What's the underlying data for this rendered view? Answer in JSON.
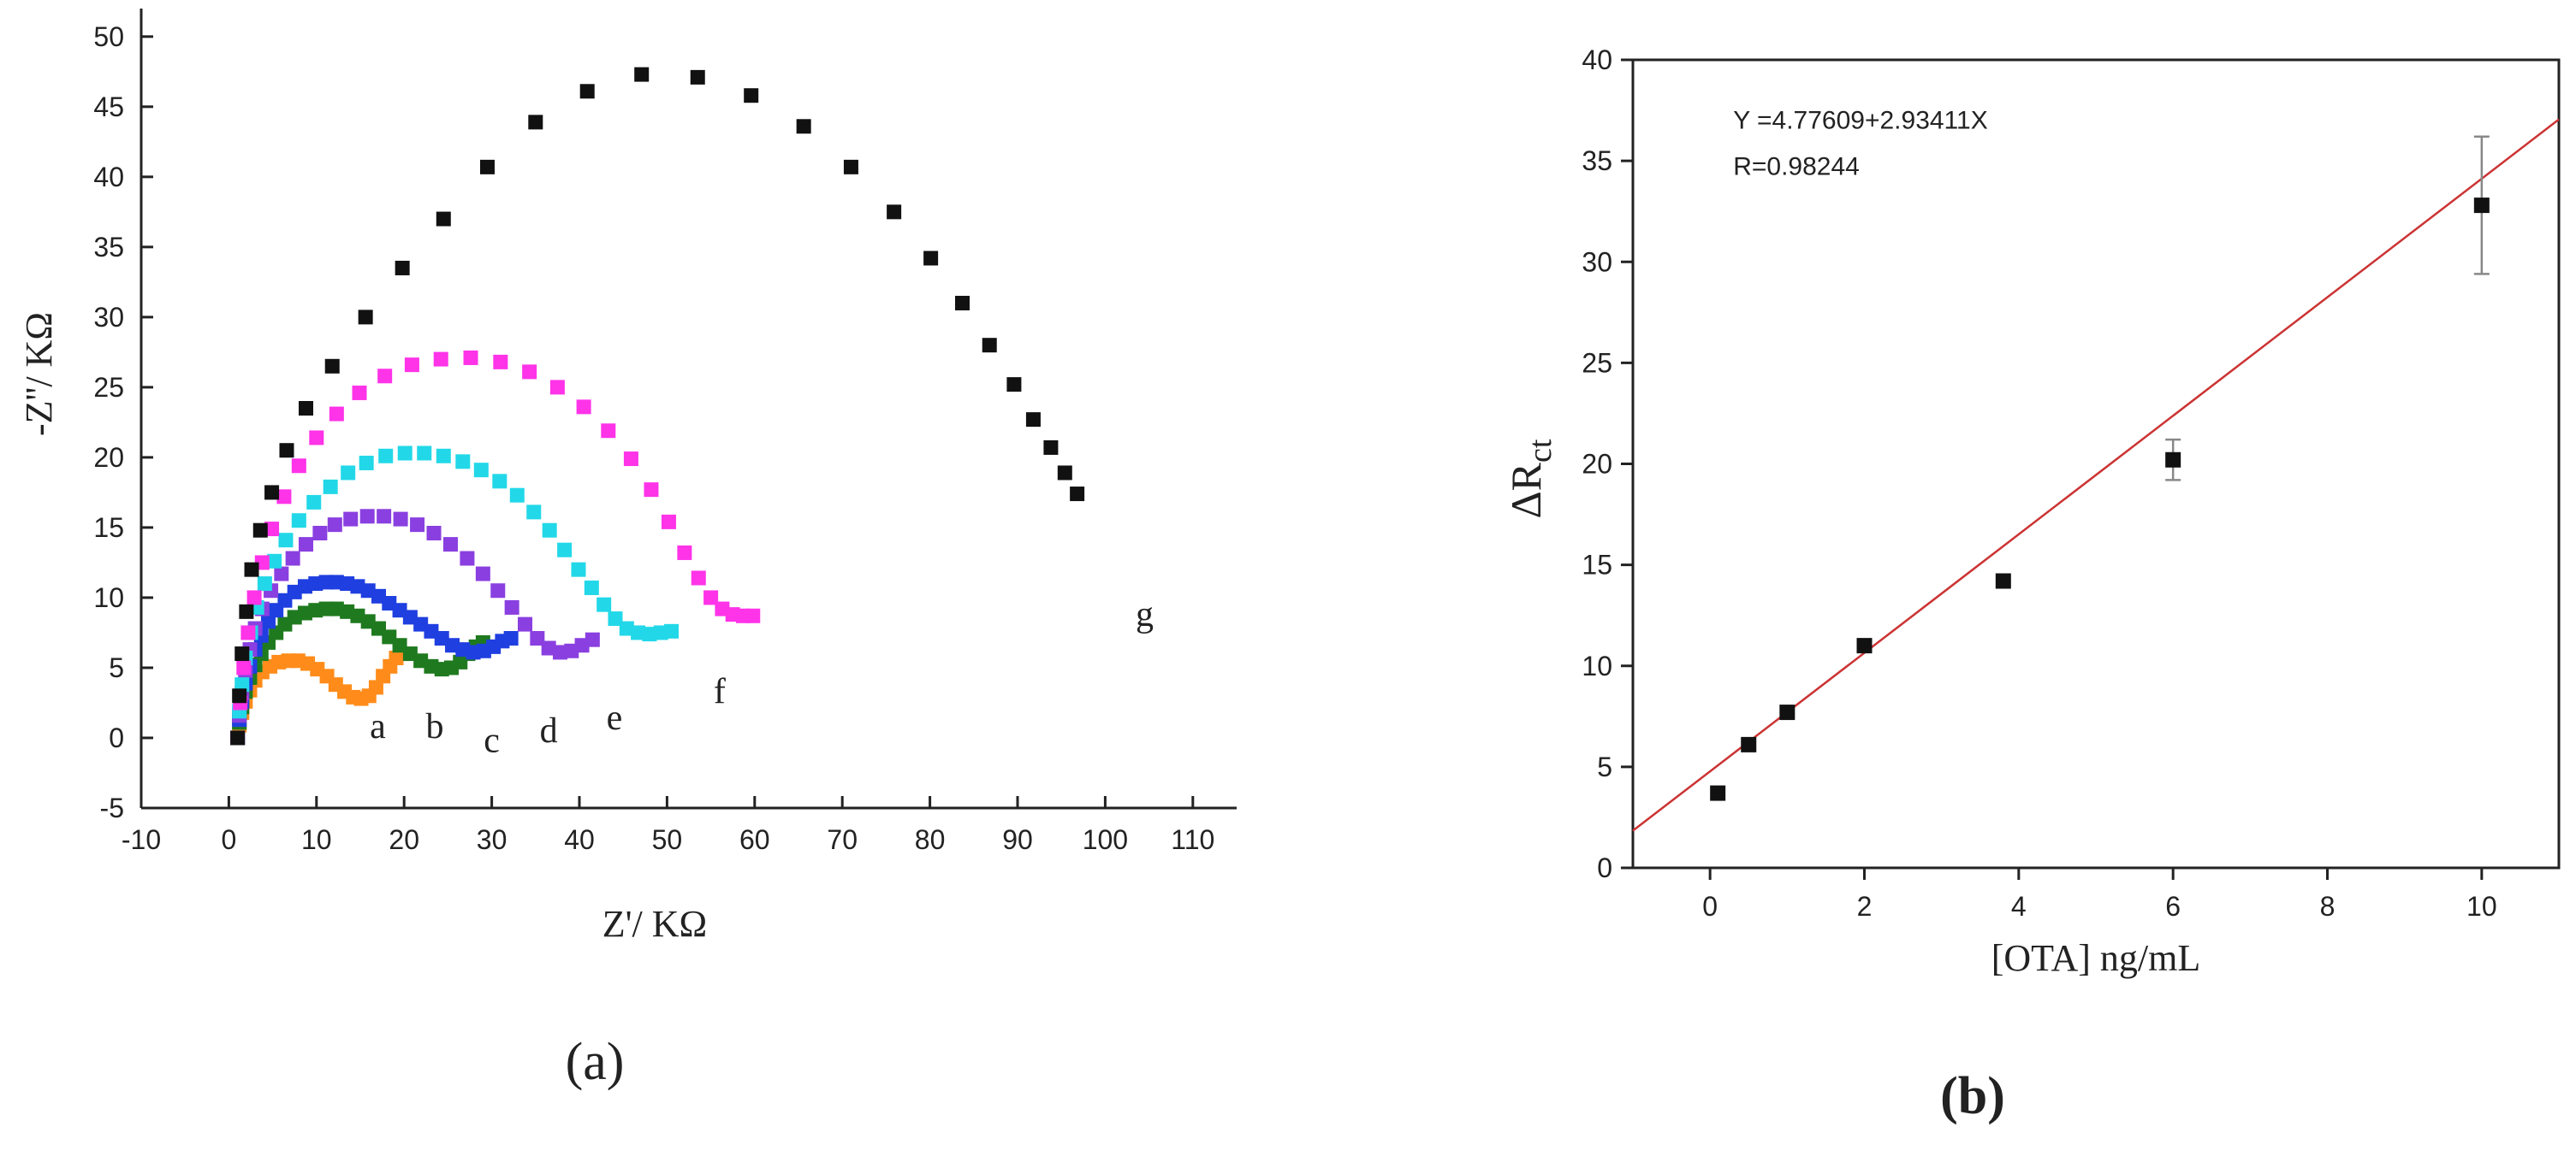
{
  "panels": {
    "a": {
      "label": "(a)"
    },
    "b": {
      "label": "(b)"
    }
  },
  "chart_data": [
    {
      "panel": "a",
      "type": "scatter",
      "title": "",
      "xlabel": "Z'/ KΩ",
      "ylabel": "-Z''/ KΩ",
      "xlim": [
        -10,
        115
      ],
      "ylim": [
        -5,
        52
      ],
      "xticks": [
        -10,
        0,
        10,
        20,
        30,
        40,
        50,
        60,
        70,
        80,
        90,
        100,
        110
      ],
      "yticks": [
        -5,
        0,
        5,
        10,
        15,
        20,
        25,
        30,
        35,
        40,
        45,
        50
      ],
      "grid": false,
      "series": [
        {
          "name": "a",
          "color": "#ff8c1a",
          "label_at": [
            17,
            0
          ],
          "points": [
            [
              1,
              0
            ],
            [
              1.2,
              0.9
            ],
            [
              1.5,
              1.8
            ],
            [
              1.9,
              2.6
            ],
            [
              2.4,
              3.4
            ],
            [
              3,
              4.1
            ],
            [
              3.8,
              4.7
            ],
            [
              4.7,
              5.1
            ],
            [
              5.7,
              5.4
            ],
            [
              6.8,
              5.5
            ],
            [
              7.9,
              5.5
            ],
            [
              9,
              5.3
            ],
            [
              10.1,
              4.9
            ],
            [
              11.2,
              4.4
            ],
            [
              12.2,
              3.8
            ],
            [
              13.2,
              3.3
            ],
            [
              14.2,
              2.9
            ],
            [
              15.1,
              2.8
            ],
            [
              16,
              3
            ],
            [
              16.8,
              3.6
            ],
            [
              17.6,
              4.4
            ],
            [
              18.4,
              5.1
            ],
            [
              19.1,
              5.7
            ],
            [
              19.7,
              6
            ]
          ]
        },
        {
          "name": "b",
          "color": "#1f7a1f",
          "label_at": [
            23.5,
            0
          ],
          "points": [
            [
              1,
              0
            ],
            [
              1.2,
              1.1
            ],
            [
              1.5,
              2.2
            ],
            [
              1.9,
              3.3
            ],
            [
              2.4,
              4.3
            ],
            [
              3,
              5.2
            ],
            [
              3.7,
              6
            ],
            [
              4.5,
              6.8
            ],
            [
              5.4,
              7.5
            ],
            [
              6.4,
              8.1
            ],
            [
              7.5,
              8.6
            ],
            [
              8.7,
              8.9
            ],
            [
              9.9,
              9.1
            ],
            [
              11.1,
              9.2
            ],
            [
              12.3,
              9.2
            ],
            [
              13.5,
              9
            ],
            [
              14.7,
              8.7
            ],
            [
              15.9,
              8.3
            ],
            [
              17.1,
              7.8
            ],
            [
              18.3,
              7.2
            ],
            [
              19.5,
              6.6
            ],
            [
              20.7,
              6
            ],
            [
              21.9,
              5.5
            ],
            [
              23.1,
              5.1
            ],
            [
              24.3,
              4.9
            ],
            [
              25.4,
              5
            ],
            [
              26.4,
              5.4
            ],
            [
              27.3,
              6
            ],
            [
              28.2,
              6.5
            ],
            [
              29,
              6.8
            ]
          ]
        },
        {
          "name": "c",
          "color": "#1f3fe0",
          "label_at": [
            30,
            -1
          ],
          "points": [
            [
              1,
              0
            ],
            [
              1.2,
              1.3
            ],
            [
              1.5,
              2.6
            ],
            [
              1.9,
              3.9
            ],
            [
              2.4,
              5.1
            ],
            [
              3,
              6.3
            ],
            [
              3.7,
              7.3
            ],
            [
              4.5,
              8.3
            ],
            [
              5.4,
              9.1
            ],
            [
              6.4,
              9.8
            ],
            [
              7.5,
              10.4
            ],
            [
              8.7,
              10.8
            ],
            [
              9.9,
              11
            ],
            [
              11.1,
              11.1
            ],
            [
              12.3,
              11.1
            ],
            [
              13.5,
              11
            ],
            [
              14.7,
              10.8
            ],
            [
              15.9,
              10.5
            ],
            [
              17.1,
              10.1
            ],
            [
              18.3,
              9.6
            ],
            [
              19.5,
              9.1
            ],
            [
              20.7,
              8.6
            ],
            [
              21.9,
              8.1
            ],
            [
              23.1,
              7.6
            ],
            [
              24.3,
              7.1
            ],
            [
              25.5,
              6.6
            ],
            [
              26.7,
              6.3
            ],
            [
              27.9,
              6.1
            ],
            [
              29.1,
              6.2
            ],
            [
              30.2,
              6.5
            ],
            [
              31.2,
              6.9
            ],
            [
              32.2,
              7.1
            ]
          ]
        },
        {
          "name": "d",
          "color": "#8a3fe0",
          "label_at": [
            36.5,
            -0.3
          ],
          "points": [
            [
              1,
              0
            ],
            [
              1.2,
              1.6
            ],
            [
              1.5,
              3.2
            ],
            [
              1.9,
              4.8
            ],
            [
              2.4,
              6.3
            ],
            [
              3,
              7.8
            ],
            [
              3.8,
              9.2
            ],
            [
              4.8,
              10.5
            ],
            [
              6,
              11.7
            ],
            [
              7.3,
              12.8
            ],
            [
              8.8,
              13.8
            ],
            [
              10.4,
              14.6
            ],
            [
              12.1,
              15.2
            ],
            [
              13.9,
              15.6
            ],
            [
              15.8,
              15.8
            ],
            [
              17.7,
              15.8
            ],
            [
              19.6,
              15.6
            ],
            [
              21.5,
              15.2
            ],
            [
              23.4,
              14.6
            ],
            [
              25.3,
              13.8
            ],
            [
              27.2,
              12.8
            ],
            [
              29,
              11.7
            ],
            [
              30.7,
              10.5
            ],
            [
              32.3,
              9.3
            ],
            [
              33.8,
              8.1
            ],
            [
              35.2,
              7.1
            ],
            [
              36.5,
              6.4
            ],
            [
              37.8,
              6.1
            ],
            [
              39.1,
              6.2
            ],
            [
              40.3,
              6.6
            ],
            [
              41.5,
              7
            ]
          ]
        },
        {
          "name": "e",
          "color": "#22d8e8",
          "label_at": [
            44,
            0.6
          ],
          "points": [
            [
              1,
              0
            ],
            [
              1.2,
              1.9
            ],
            [
              1.5,
              3.8
            ],
            [
              1.9,
              5.7
            ],
            [
              2.5,
              7.5
            ],
            [
              3.2,
              9.3
            ],
            [
              4.1,
              11
            ],
            [
              5.2,
              12.6
            ],
            [
              6.5,
              14.1
            ],
            [
              8,
              15.5
            ],
            [
              9.7,
              16.8
            ],
            [
              11.6,
              17.9
            ],
            [
              13.6,
              18.9
            ],
            [
              15.7,
              19.6
            ],
            [
              17.9,
              20.1
            ],
            [
              20.1,
              20.3
            ],
            [
              22.3,
              20.3
            ],
            [
              24.5,
              20.1
            ],
            [
              26.7,
              19.7
            ],
            [
              28.8,
              19.1
            ],
            [
              30.9,
              18.3
            ],
            [
              32.9,
              17.3
            ],
            [
              34.8,
              16.1
            ],
            [
              36.6,
              14.8
            ],
            [
              38.3,
              13.4
            ],
            [
              39.9,
              12
            ],
            [
              41.4,
              10.7
            ],
            [
              42.8,
              9.5
            ],
            [
              44.1,
              8.5
            ],
            [
              45.4,
              7.8
            ],
            [
              46.7,
              7.5
            ],
            [
              48,
              7.4
            ],
            [
              49.3,
              7.5
            ],
            [
              50.5,
              7.6
            ]
          ]
        },
        {
          "name": "f",
          "color": "#ff33e8",
          "label_at": [
            56,
            2.5
          ],
          "points": [
            [
              1,
              0
            ],
            [
              1.3,
              2.5
            ],
            [
              1.7,
              5
            ],
            [
              2.2,
              7.5
            ],
            [
              2.9,
              10
            ],
            [
              3.8,
              12.5
            ],
            [
              4.9,
              14.9
            ],
            [
              6.3,
              17.2
            ],
            [
              8,
              19.4
            ],
            [
              10,
              21.4
            ],
            [
              12.3,
              23.1
            ],
            [
              14.9,
              24.6
            ],
            [
              17.8,
              25.8
            ],
            [
              20.9,
              26.6
            ],
            [
              24.2,
              27
            ],
            [
              27.6,
              27.1
            ],
            [
              31,
              26.8
            ],
            [
              34.3,
              26.1
            ],
            [
              37.5,
              25
            ],
            [
              40.5,
              23.6
            ],
            [
              43.3,
              21.9
            ],
            [
              45.9,
              19.9
            ],
            [
              48.2,
              17.7
            ],
            [
              50.2,
              15.4
            ],
            [
              52,
              13.2
            ],
            [
              53.6,
              11.4
            ],
            [
              55,
              10
            ],
            [
              56.3,
              9.2
            ],
            [
              57.5,
              8.8
            ],
            [
              58.7,
              8.7
            ],
            [
              59.8,
              8.7
            ]
          ]
        },
        {
          "name": "g",
          "color": "#111111",
          "label_at": [
            104.5,
            8
          ],
          "points": [
            [
              1,
              0
            ],
            [
              1.2,
              3
            ],
            [
              1.5,
              6
            ],
            [
              2,
              9
            ],
            [
              2.6,
              12
            ],
            [
              3.6,
              14.8
            ],
            [
              4.9,
              17.5
            ],
            [
              6.6,
              20.5
            ],
            [
              8.8,
              23.5
            ],
            [
              11.8,
              26.5
            ],
            [
              15.6,
              30
            ],
            [
              19.8,
              33.5
            ],
            [
              24.5,
              37
            ],
            [
              29.5,
              40.7
            ],
            [
              35,
              43.9
            ],
            [
              40.9,
              46.1
            ],
            [
              47.1,
              47.3
            ],
            [
              53.5,
              47.1
            ],
            [
              59.6,
              45.8
            ],
            [
              65.6,
              43.6
            ],
            [
              71,
              40.7
            ],
            [
              75.9,
              37.5
            ],
            [
              80.1,
              34.2
            ],
            [
              83.7,
              31
            ],
            [
              86.8,
              28
            ],
            [
              89.6,
              25.2
            ],
            [
              91.8,
              22.7
            ],
            [
              93.8,
              20.7
            ],
            [
              95.4,
              18.9
            ],
            [
              96.8,
              17.4
            ]
          ]
        }
      ]
    },
    {
      "panel": "b",
      "type": "scatter",
      "title": "",
      "xlabel": "[OTA] ng/mL",
      "ylabel": "ΔR",
      "ylabel_sub": "ct",
      "xlim": [
        -1,
        11
      ],
      "ylim": [
        0,
        40
      ],
      "xticks": [
        0,
        2,
        4,
        6,
        8,
        10
      ],
      "yticks": [
        0,
        5,
        10,
        15,
        20,
        25,
        30,
        35,
        40
      ],
      "grid": false,
      "points": [
        {
          "x": 0.1,
          "y": 3.7
        },
        {
          "x": 0.5,
          "y": 6.1
        },
        {
          "x": 1,
          "y": 7.7
        },
        {
          "x": 2,
          "y": 11.0
        },
        {
          "x": 3.8,
          "y": 14.2
        },
        {
          "x": 6,
          "y": 20.2,
          "err": 1.0
        },
        {
          "x": 10,
          "y": 32.8,
          "err": 3.4
        }
      ],
      "fit": {
        "intercept": 4.77609,
        "slope": 2.93411,
        "color": "#cc3333",
        "equation": "Y =4.77609+2.93411X",
        "r": "R=0.98244"
      }
    }
  ]
}
